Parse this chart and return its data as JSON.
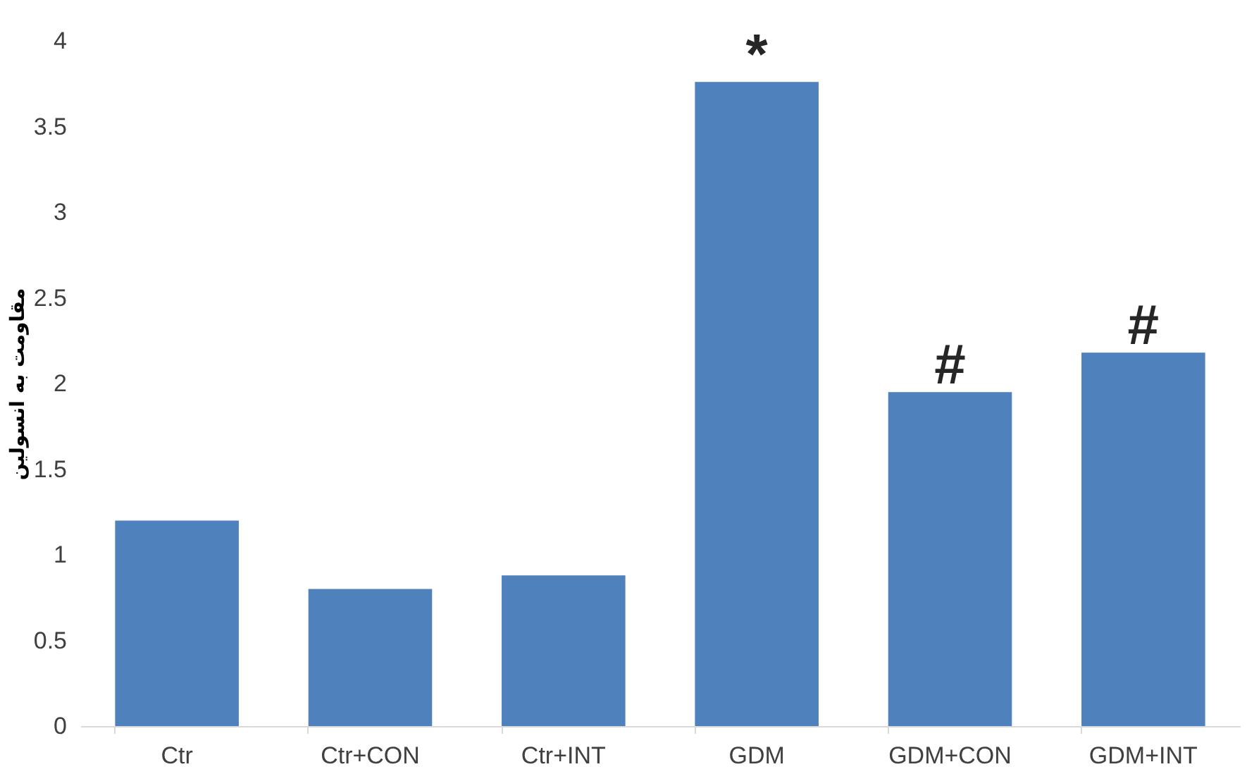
{
  "chart_data": {
    "type": "bar",
    "ylabel": "مقاومت به انسولین",
    "categories": [
      "Ctr",
      "Ctr+CON",
      "Ctr+INT",
      "GDM",
      "GDM+CON",
      "GDM+INT"
    ],
    "values": [
      1.2,
      0.8,
      0.88,
      3.76,
      1.95,
      2.18
    ],
    "color": "#4f81bd",
    "ylim": [
      0,
      4
    ],
    "yticks": [
      0,
      0.5,
      1,
      1.5,
      2,
      2.5,
      3,
      3.5,
      4
    ],
    "grid": false,
    "annotations": [
      {
        "text": "*",
        "x": "GDM",
        "y": 3.76
      },
      {
        "text": "#",
        "x": "GDM+CON",
        "y": 1.95
      },
      {
        "text": "#",
        "x": "GDM+INT",
        "y": 2.18
      }
    ]
  }
}
